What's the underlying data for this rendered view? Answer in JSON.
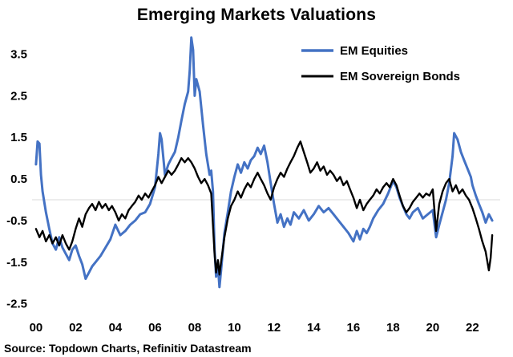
{
  "title": "Emerging Markets Valuations",
  "source_text": "Source: Topdown Charts, Refinitiv Datastream",
  "colors": {
    "equities": "#4472C4",
    "bonds": "#000000",
    "zero_line": "#D9D9D9",
    "text": "#000000",
    "background": "#FFFFFF"
  },
  "legend": {
    "items": [
      {
        "label": "EM Equities",
        "color": "#4472C4"
      },
      {
        "label": "EM Sovereign Bonds",
        "color": "#000000"
      }
    ]
  },
  "chart_data": {
    "type": "line",
    "title": "Emerging Markets Valuations",
    "xlabel": "",
    "ylabel": "",
    "xlim": [
      1999.8,
      2023.4
    ],
    "ylim": [
      -2.7,
      4.05
    ],
    "yticks": [
      3.5,
      2.5,
      1.5,
      0.5,
      -0.5,
      -1.5,
      -2.5
    ],
    "ytick_labels": [
      "3.5",
      "2.5",
      "1.5",
      "0.5",
      "-0.5",
      "-1.5",
      "-2.5"
    ],
    "xticks": [
      2000,
      2002,
      2004,
      2006,
      2008,
      2010,
      2012,
      2014,
      2016,
      2018,
      2020,
      2022
    ],
    "xtick_labels": [
      "00",
      "02",
      "04",
      "06",
      "08",
      "10",
      "12",
      "14",
      "16",
      "18",
      "20",
      "22"
    ],
    "grid": false,
    "zero_line": true,
    "legend_position": "top-right",
    "series": [
      {
        "name": "EM Equities",
        "id": "em-equities",
        "color": "#4472C4",
        "width": 3,
        "x": [
          2000.0,
          2000.08,
          2000.17,
          2000.25,
          2000.33,
          2000.5,
          2000.67,
          2000.83,
          2001.0,
          2001.17,
          2001.33,
          2001.5,
          2001.67,
          2001.83,
          2002.0,
          2002.17,
          2002.33,
          2002.5,
          2002.67,
          2002.83,
          2003.0,
          2003.25,
          2003.5,
          2003.75,
          2004.0,
          2004.25,
          2004.5,
          2004.75,
          2005.0,
          2005.25,
          2005.5,
          2005.75,
          2006.0,
          2006.17,
          2006.25,
          2006.33,
          2006.5,
          2006.67,
          2006.83,
          2007.0,
          2007.17,
          2007.33,
          2007.5,
          2007.67,
          2007.75,
          2007.83,
          2007.92,
          2008.0,
          2008.08,
          2008.25,
          2008.42,
          2008.58,
          2008.75,
          2008.83,
          2008.92,
          2009.0,
          2009.08,
          2009.17,
          2009.25,
          2009.33,
          2009.5,
          2009.67,
          2009.83,
          2010.0,
          2010.17,
          2010.33,
          2010.5,
          2010.67,
          2010.83,
          2011.0,
          2011.17,
          2011.33,
          2011.5,
          2011.67,
          2011.83,
          2012.0,
          2012.17,
          2012.33,
          2012.5,
          2012.67,
          2012.83,
          2013.0,
          2013.25,
          2013.5,
          2013.75,
          2014.0,
          2014.25,
          2014.5,
          2014.75,
          2015.0,
          2015.25,
          2015.5,
          2015.75,
          2016.0,
          2016.17,
          2016.33,
          2016.5,
          2016.67,
          2016.83,
          2017.0,
          2017.25,
          2017.5,
          2017.75,
          2018.0,
          2018.17,
          2018.33,
          2018.5,
          2018.67,
          2018.83,
          2019.0,
          2019.25,
          2019.5,
          2019.75,
          2020.0,
          2020.17,
          2020.33,
          2020.5,
          2020.67,
          2020.83,
          2021.0,
          2021.08,
          2021.25,
          2021.42,
          2021.58,
          2021.75,
          2021.92,
          2022.0,
          2022.17,
          2022.33,
          2022.5,
          2022.67,
          2022.83,
          2023.0
        ],
        "y": [
          0.85,
          1.4,
          1.35,
          0.6,
          0.2,
          -0.3,
          -0.7,
          -1.05,
          -1.2,
          -0.9,
          -1.15,
          -1.3,
          -1.45,
          -1.2,
          -1.1,
          -1.35,
          -1.55,
          -1.9,
          -1.75,
          -1.6,
          -1.5,
          -1.35,
          -1.15,
          -0.95,
          -0.6,
          -0.85,
          -0.75,
          -0.6,
          -0.5,
          -0.35,
          -0.3,
          -0.1,
          0.3,
          1.1,
          1.6,
          1.45,
          0.6,
          0.85,
          1.0,
          1.15,
          1.5,
          1.9,
          2.3,
          2.6,
          3.1,
          3.9,
          3.6,
          2.5,
          2.9,
          2.6,
          1.8,
          1.1,
          0.6,
          0.7,
          0.2,
          -1.2,
          -1.85,
          -1.6,
          -2.1,
          -1.7,
          -0.8,
          -0.3,
          0.2,
          0.55,
          0.85,
          0.65,
          0.9,
          0.75,
          0.95,
          1.05,
          1.25,
          1.1,
          1.3,
          0.9,
          0.4,
          -0.1,
          -0.55,
          -0.35,
          -0.65,
          -0.45,
          -0.6,
          -0.3,
          -0.45,
          -0.25,
          -0.5,
          -0.35,
          -0.15,
          -0.3,
          -0.2,
          -0.35,
          -0.5,
          -0.65,
          -0.8,
          -1.0,
          -0.75,
          -0.95,
          -0.7,
          -0.8,
          -0.65,
          -0.45,
          -0.25,
          -0.1,
          0.15,
          0.45,
          0.3,
          0.05,
          -0.15,
          -0.35,
          -0.45,
          -0.3,
          -0.2,
          -0.45,
          -0.35,
          -0.25,
          -0.9,
          -0.6,
          -0.3,
          0.0,
          0.4,
          1.05,
          1.6,
          1.45,
          1.15,
          0.95,
          0.75,
          0.55,
          0.35,
          0.1,
          -0.1,
          -0.3,
          -0.55,
          -0.35,
          -0.5
        ]
      },
      {
        "name": "EM Sovereign Bonds",
        "id": "em-sovereign-bonds",
        "color": "#000000",
        "width": 2.4,
        "x": [
          2000.0,
          2000.17,
          2000.33,
          2000.5,
          2000.67,
          2000.83,
          2001.0,
          2001.17,
          2001.33,
          2001.5,
          2001.67,
          2001.83,
          2002.0,
          2002.17,
          2002.33,
          2002.5,
          2002.67,
          2002.83,
          2003.0,
          2003.17,
          2003.33,
          2003.5,
          2003.67,
          2003.83,
          2004.0,
          2004.17,
          2004.33,
          2004.5,
          2004.67,
          2004.83,
          2005.0,
          2005.17,
          2005.33,
          2005.5,
          2005.67,
          2005.83,
          2006.0,
          2006.17,
          2006.33,
          2006.5,
          2006.67,
          2006.83,
          2007.0,
          2007.17,
          2007.33,
          2007.5,
          2007.67,
          2007.83,
          2008.0,
          2008.17,
          2008.33,
          2008.5,
          2008.67,
          2008.83,
          2009.0,
          2009.08,
          2009.17,
          2009.25,
          2009.33,
          2009.5,
          2009.67,
          2009.83,
          2010.0,
          2010.17,
          2010.33,
          2010.5,
          2010.67,
          2010.83,
          2011.0,
          2011.17,
          2011.33,
          2011.5,
          2011.67,
          2011.83,
          2012.0,
          2012.17,
          2012.33,
          2012.5,
          2012.67,
          2012.83,
          2013.0,
          2013.17,
          2013.33,
          2013.5,
          2013.67,
          2013.83,
          2014.0,
          2014.17,
          2014.33,
          2014.5,
          2014.67,
          2014.83,
          2015.0,
          2015.17,
          2015.33,
          2015.5,
          2015.67,
          2015.83,
          2016.0,
          2016.17,
          2016.33,
          2016.5,
          2016.67,
          2016.83,
          2017.0,
          2017.17,
          2017.33,
          2017.5,
          2017.67,
          2017.83,
          2018.0,
          2018.17,
          2018.33,
          2018.5,
          2018.67,
          2018.83,
          2019.0,
          2019.17,
          2019.33,
          2019.5,
          2019.67,
          2019.83,
          2020.0,
          2020.17,
          2020.33,
          2020.5,
          2020.67,
          2020.83,
          2021.0,
          2021.17,
          2021.33,
          2021.5,
          2021.67,
          2021.83,
          2022.0,
          2022.17,
          2022.33,
          2022.5,
          2022.67,
          2022.83,
          2022.92,
          2023.0
        ],
        "y": [
          -0.7,
          -0.9,
          -0.75,
          -1.0,
          -0.85,
          -1.05,
          -0.9,
          -1.1,
          -0.85,
          -1.05,
          -1.2,
          -1.0,
          -0.7,
          -0.45,
          -0.65,
          -0.35,
          -0.2,
          -0.1,
          -0.25,
          -0.05,
          -0.2,
          -0.1,
          -0.25,
          -0.15,
          -0.3,
          -0.5,
          -0.35,
          -0.45,
          -0.25,
          -0.15,
          -0.05,
          0.1,
          0.0,
          0.15,
          0.05,
          0.2,
          0.35,
          0.55,
          0.4,
          0.55,
          0.7,
          0.6,
          0.7,
          0.85,
          1.0,
          0.9,
          1.0,
          0.9,
          0.75,
          0.55,
          0.4,
          0.5,
          0.35,
          0.15,
          -1.3,
          -1.75,
          -1.45,
          -1.8,
          -1.5,
          -0.9,
          -0.45,
          -0.15,
          0.0,
          0.2,
          0.05,
          0.25,
          0.4,
          0.3,
          0.5,
          0.65,
          0.5,
          0.35,
          0.15,
          0.0,
          0.3,
          0.5,
          0.65,
          0.55,
          0.75,
          0.9,
          1.05,
          1.25,
          1.4,
          1.15,
          0.9,
          0.65,
          0.75,
          0.9,
          0.7,
          0.8,
          0.6,
          0.7,
          0.6,
          0.45,
          0.55,
          0.35,
          0.45,
          0.25,
          0.05,
          -0.2,
          0.0,
          -0.25,
          -0.1,
          0.0,
          0.1,
          0.25,
          0.15,
          0.3,
          0.4,
          0.3,
          0.5,
          0.35,
          0.1,
          -0.15,
          -0.3,
          -0.2,
          -0.05,
          0.05,
          0.15,
          0.05,
          0.15,
          0.1,
          0.25,
          -0.75,
          -0.1,
          0.2,
          0.4,
          0.5,
          0.2,
          0.35,
          0.15,
          0.25,
          0.1,
          0.0,
          -0.2,
          -0.45,
          -0.7,
          -1.0,
          -1.25,
          -1.7,
          -1.4,
          -0.85
        ]
      }
    ]
  }
}
